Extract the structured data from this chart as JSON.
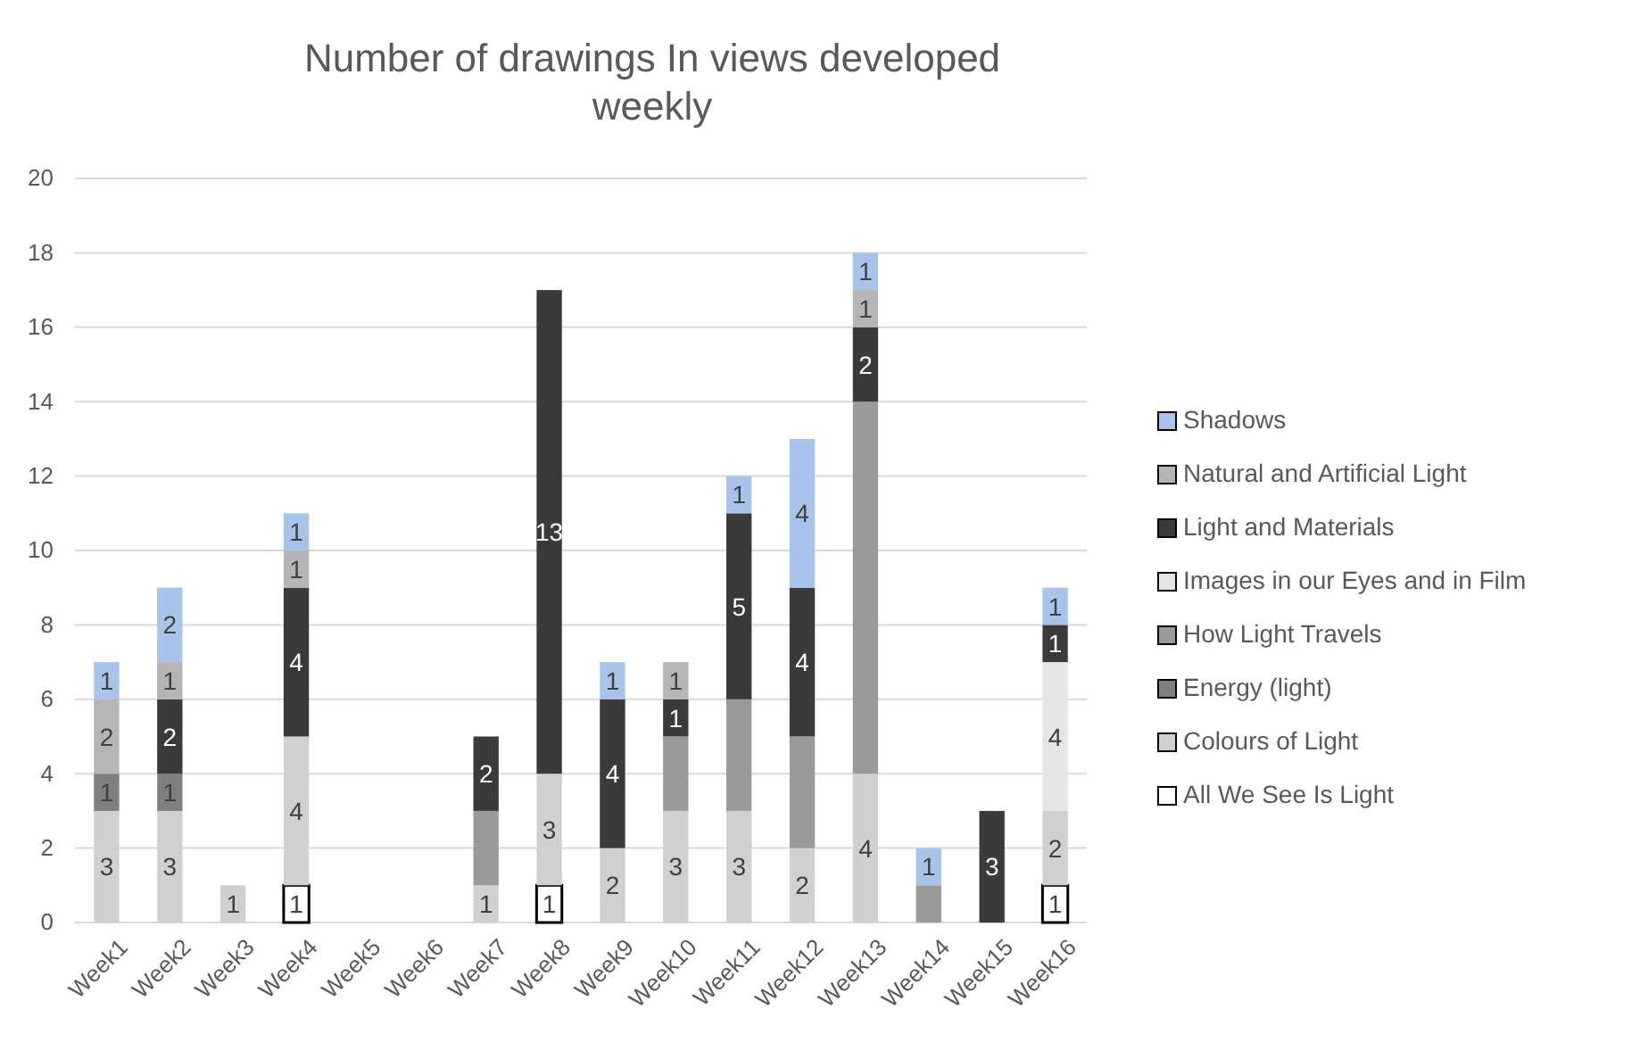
{
  "chart_data": {
    "type": "bar",
    "stacked": true,
    "title": "Number of drawings In views developed weekly",
    "categories": [
      "Week1",
      "Week2",
      "Week3",
      "Week4",
      "Week5",
      "Week6",
      "Week7",
      "Week8",
      "Week9",
      "Week10",
      "Week11",
      "Week12",
      "Week13",
      "Week14",
      "Week15",
      "Week16"
    ],
    "ylim": [
      0,
      20
    ],
    "yticks": [
      0,
      2,
      4,
      6,
      8,
      10,
      12,
      14,
      16,
      18,
      20
    ],
    "grid": "y",
    "legend": "right",
    "series": [
      {
        "name": "All We See Is Light",
        "color": "#ffffff",
        "values": [
          0,
          0,
          0,
          1,
          0,
          0,
          0,
          1,
          0,
          0,
          0,
          0,
          0,
          0,
          0,
          1
        ],
        "value_labels": [
          null,
          null,
          null,
          "1",
          null,
          null,
          null,
          "1",
          null,
          null,
          null,
          null,
          null,
          null,
          null,
          "1"
        ]
      },
      {
        "name": "Colours of Light",
        "color": "#d0d0d0",
        "values": [
          3,
          3,
          1,
          4,
          0,
          0,
          1,
          3,
          2,
          3,
          3,
          2,
          4,
          0,
          0,
          2
        ],
        "value_labels": [
          "3",
          "3",
          "1",
          "4",
          null,
          null,
          "1",
          "3",
          "2",
          "3",
          "3",
          "2",
          "4",
          null,
          null,
          "2"
        ]
      },
      {
        "name": "Energy (light)",
        "color": "#7f7f7f",
        "values": [
          1,
          1,
          0,
          0,
          0,
          0,
          0,
          0,
          0,
          0,
          0,
          0,
          0,
          0,
          0,
          0
        ],
        "value_labels": [
          "1",
          "1",
          null,
          null,
          null,
          null,
          null,
          null,
          null,
          null,
          null,
          null,
          null,
          null,
          null,
          null
        ]
      },
      {
        "name": "How Light Travels",
        "color": "#9a9a9a",
        "values": [
          0,
          0,
          0,
          0,
          0,
          0,
          2,
          0,
          0,
          2,
          3,
          3,
          10,
          1,
          0,
          0
        ],
        "value_labels": [
          null,
          null,
          null,
          null,
          null,
          null,
          null,
          null,
          null,
          null,
          null,
          null,
          null,
          null,
          null,
          null
        ]
      },
      {
        "name": "Images in our Eyes and in Film",
        "color": "#e6e6e6",
        "values": [
          0,
          0,
          0,
          0,
          0,
          0,
          0,
          0,
          0,
          0,
          0,
          0,
          0,
          0,
          0,
          4
        ],
        "value_labels": [
          null,
          null,
          null,
          null,
          null,
          null,
          null,
          null,
          null,
          null,
          null,
          null,
          null,
          null,
          null,
          "4"
        ]
      },
      {
        "name": "Light and Materials",
        "color": "#3a3a3a",
        "values": [
          0,
          2,
          0,
          4,
          0,
          0,
          2,
          13,
          4,
          1,
          5,
          4,
          2,
          0,
          3,
          1
        ],
        "value_labels": [
          null,
          "2",
          null,
          "4",
          null,
          null,
          "2",
          "13",
          "4",
          "1",
          "5",
          "4",
          "2",
          null,
          "3",
          "1"
        ]
      },
      {
        "name": "Natural and Artificial Light",
        "color": "#b5b5b5",
        "values": [
          2,
          1,
          0,
          1,
          0,
          0,
          0,
          0,
          0,
          1,
          0,
          0,
          1,
          0,
          0,
          0
        ],
        "value_labels": [
          "2",
          "1",
          null,
          "1",
          null,
          null,
          null,
          null,
          null,
          "1",
          null,
          null,
          "1",
          null,
          null,
          null
        ]
      },
      {
        "name": "Shadows",
        "color": "#a9c4ea",
        "values": [
          1,
          2,
          0,
          1,
          0,
          0,
          0,
          0,
          1,
          0,
          1,
          4,
          1,
          1,
          0,
          1
        ],
        "value_labels": [
          "1",
          "2",
          null,
          "1",
          null,
          null,
          null,
          null,
          "1",
          null,
          "1",
          "4",
          "1",
          "1",
          null,
          "1"
        ]
      }
    ]
  }
}
